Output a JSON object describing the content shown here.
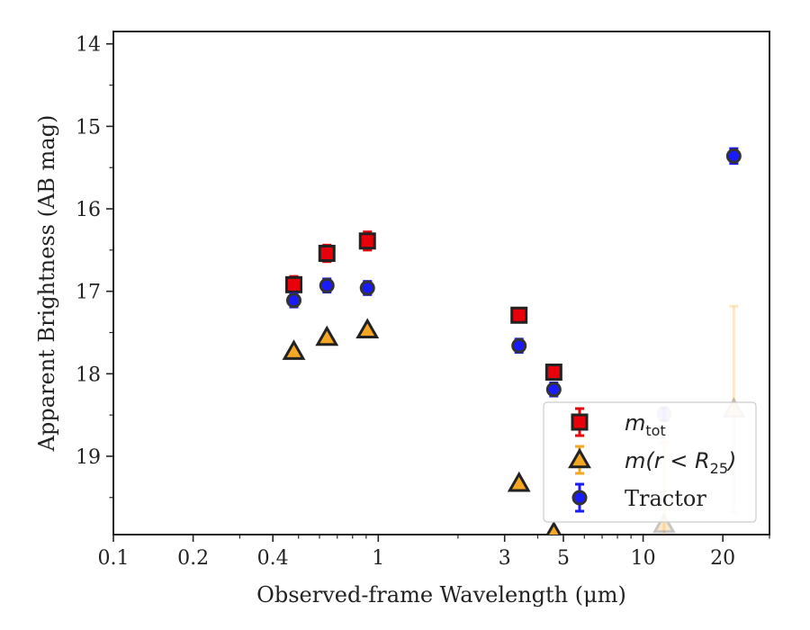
{
  "chart_data": {
    "type": "scatter",
    "xlabel": "Observed-frame Wavelength (μm)",
    "ylabel": "Apparent Brightness (AB mag)",
    "xscale": "log",
    "xlim": [
      0.1,
      30
    ],
    "ylim": [
      19.95,
      13.85
    ],
    "y_inverted": true,
    "x_ticks": [
      {
        "value": 0.1,
        "label": "0.1"
      },
      {
        "value": 0.2,
        "label": "0.2"
      },
      {
        "value": 0.4,
        "label": "0.4"
      },
      {
        "value": 1,
        "label": "1"
      },
      {
        "value": 3,
        "label": "3"
      },
      {
        "value": 5,
        "label": "5"
      },
      {
        "value": 10,
        "label": "10"
      },
      {
        "value": 20,
        "label": "20"
      }
    ],
    "x_minor_ticks": [
      0.3,
      0.5,
      0.6,
      0.7,
      0.8,
      0.9,
      2,
      4,
      6,
      7,
      8,
      9,
      30
    ],
    "y_ticks": [
      {
        "value": 14,
        "label": "14"
      },
      {
        "value": 15,
        "label": "15"
      },
      {
        "value": 16,
        "label": "16"
      },
      {
        "value": 17,
        "label": "17"
      },
      {
        "value": 18,
        "label": "18"
      },
      {
        "value": 19,
        "label": "19"
      }
    ],
    "y_minor_ticks": [
      14.5,
      15.5,
      16.5,
      17.5,
      18.5,
      19.5
    ],
    "grid": false,
    "legend": {
      "position": "bottom-right",
      "entries": [
        {
          "series": "mtot",
          "math": "m",
          "sub": "tot",
          "rest": ""
        },
        {
          "series": "mr25",
          "math": "m(r < R",
          "sub": "25",
          "rest": ")"
        },
        {
          "series": "tractor",
          "text": "Tractor"
        }
      ]
    },
    "series": [
      {
        "name": "m_tot",
        "key": "mtot",
        "marker": "square",
        "color": "#e8000b",
        "edge": "#222222",
        "errcolor": "#e8000b",
        "points": [
          {
            "x": 0.48,
            "y": 16.92,
            "err": 0.1
          },
          {
            "x": 0.64,
            "y": 16.54,
            "err": 0.1
          },
          {
            "x": 0.91,
            "y": 16.39,
            "err": 0.11
          },
          {
            "x": 3.4,
            "y": 17.29,
            "err": 0.06
          },
          {
            "x": 4.6,
            "y": 17.98,
            "err": 0.06
          }
        ]
      },
      {
        "name": "m(r < R25)",
        "key": "mr25",
        "marker": "triangle",
        "color": "#f5a623",
        "edge": "#222222",
        "errcolor": "#f5a623",
        "points": [
          {
            "x": 0.48,
            "y": 17.73,
            "err": 0
          },
          {
            "x": 0.64,
            "y": 17.56,
            "err": 0
          },
          {
            "x": 0.91,
            "y": 17.47,
            "err": 0
          },
          {
            "x": 3.4,
            "y": 19.33,
            "err": 0
          },
          {
            "x": 4.6,
            "y": 19.93,
            "err": 0
          },
          {
            "x": 12,
            "y": 19.83,
            "err": 1.0,
            "faded": true
          },
          {
            "x": 22,
            "y": 18.43,
            "err": 1.25,
            "faded": true
          }
        ]
      },
      {
        "name": "Tractor",
        "key": "tractor",
        "marker": "circle",
        "color": "#1a1aff",
        "edge": "#333333",
        "errcolor": "#1a1aff",
        "points": [
          {
            "x": 0.48,
            "y": 17.11,
            "err": 0.08
          },
          {
            "x": 0.64,
            "y": 16.93,
            "err": 0.08
          },
          {
            "x": 0.91,
            "y": 16.96,
            "err": 0.08
          },
          {
            "x": 3.4,
            "y": 17.66,
            "err": 0.08
          },
          {
            "x": 4.6,
            "y": 18.19,
            "err": 0.08
          },
          {
            "x": 12,
            "y": 18.49,
            "err": 0.08,
            "faded": true
          },
          {
            "x": 22,
            "y": 15.36,
            "err": 0.09
          }
        ]
      }
    ]
  }
}
